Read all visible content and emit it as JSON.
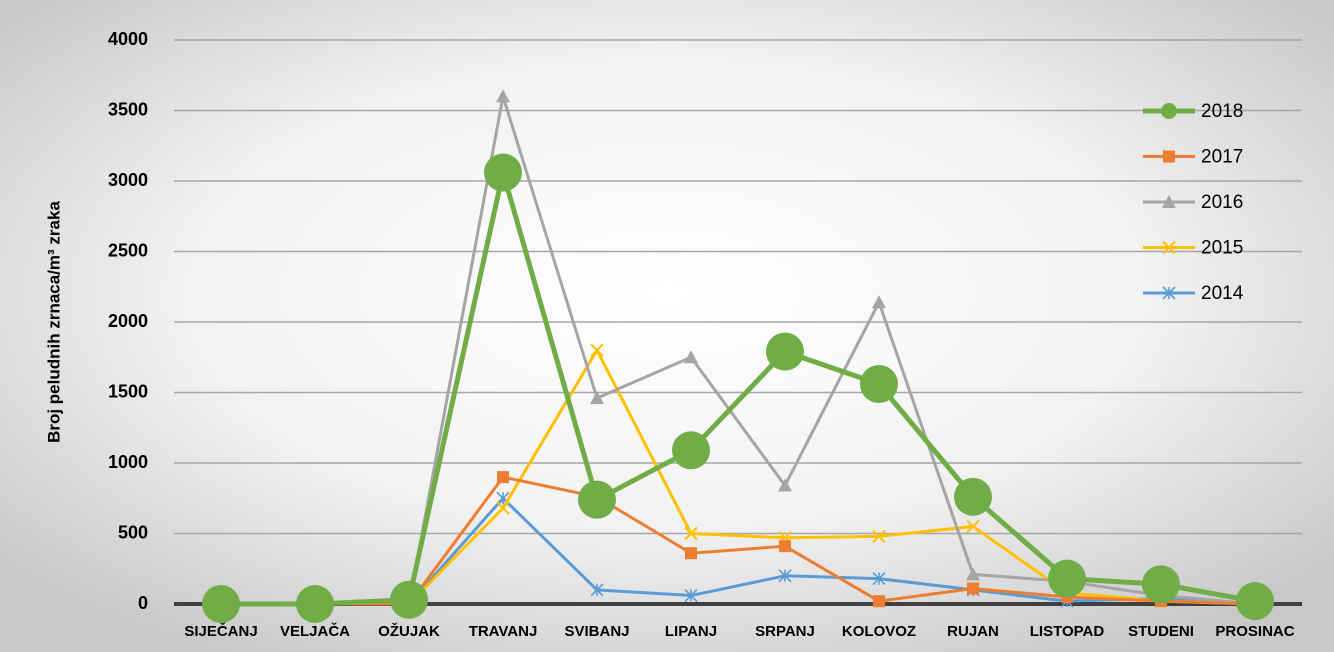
{
  "chart_data": {
    "type": "line",
    "y_label": "Broj peludnih zrnaca/m³ zraka",
    "categories": [
      "SIJEČANJ",
      "VELJAČA",
      "OŽUJAK",
      "TRAVANJ",
      "SVIBANJ",
      "LIPANJ",
      "SRPANJ",
      "KOLOVOZ",
      "RUJAN",
      "LISTOPAD",
      "STUDENI",
      "PROSINAC"
    ],
    "series": [
      {
        "name": "2018",
        "color": "#70ad47",
        "marker": "circle",
        "values": [
          0,
          0,
          30,
          3060,
          740,
          1090,
          1790,
          1560,
          760,
          180,
          140,
          20
        ]
      },
      {
        "name": "2017",
        "color": "#ed7d31",
        "marker": "square",
        "values": [
          0,
          0,
          0,
          900,
          760,
          360,
          410,
          20,
          110,
          50,
          20,
          0
        ]
      },
      {
        "name": "2016",
        "color": "#a5a5a5",
        "marker": "triangle",
        "values": [
          0,
          0,
          0,
          3600,
          1460,
          1750,
          840,
          2140,
          210,
          160,
          60,
          0
        ]
      },
      {
        "name": "2015",
        "color": "#ffc000",
        "marker": "x",
        "values": [
          0,
          0,
          0,
          680,
          1800,
          500,
          470,
          480,
          550,
          80,
          20,
          0
        ]
      },
      {
        "name": "2014",
        "color": "#5b9bd5",
        "marker": "star",
        "values": [
          0,
          0,
          0,
          750,
          100,
          60,
          200,
          180,
          100,
          20,
          40,
          0
        ]
      }
    ],
    "ylim": [
      0,
      4000
    ],
    "yticks": [
      0,
      500,
      1000,
      1500,
      2000,
      2500,
      3000,
      3500,
      4000
    ],
    "grid": true,
    "legend": "upper right"
  }
}
